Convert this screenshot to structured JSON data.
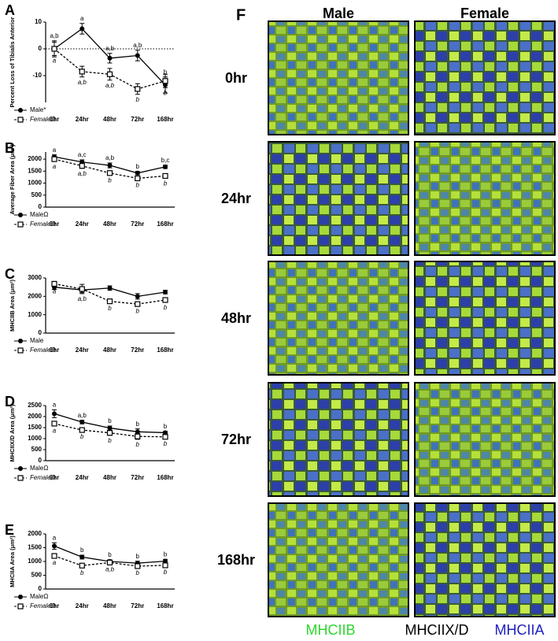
{
  "chart_data": [
    {
      "type": "line",
      "panel": "A",
      "ylabel": "Percent Loss of Tibialis Anterior",
      "categories": [
        "0hr",
        "24hr",
        "48hr",
        "72hr",
        "168hr"
      ],
      "ylim": [
        -20,
        10
      ],
      "yticks": [
        10,
        0,
        -10
      ],
      "zero_line": true,
      "series": [
        {
          "name": "Male*",
          "color": "#000000",
          "style": "solid",
          "marker": "circle",
          "values": [
            0,
            7.5,
            -3.5,
            -2.5,
            -13.5
          ],
          "errors": [
            3,
            2,
            1.8,
            2,
            3
          ],
          "labels": [
            "a,b",
            "a",
            "a,b",
            "a,b",
            "b"
          ]
        },
        {
          "name": "FemaleΩ",
          "color": "#000000",
          "style": "dashed",
          "marker": "square",
          "values": [
            0,
            -8.5,
            -9.5,
            -15,
            -12
          ],
          "errors": [
            2.5,
            2,
            2.2,
            2,
            2.5
          ],
          "labels": [
            "a",
            "a,b",
            "a,b",
            "b",
            "b"
          ]
        }
      ]
    },
    {
      "type": "line",
      "panel": "B",
      "ylabel": "Average Fiber Area (μm²)",
      "categories": [
        "0hr",
        "24hr",
        "48hr",
        "72hr",
        "168hr"
      ],
      "ylim": [
        0,
        2300
      ],
      "yticks": [
        0,
        500,
        1000,
        1500,
        2000
      ],
      "series": [
        {
          "name": "MaleΩ",
          "color": "#000000",
          "style": "solid",
          "marker": "circle",
          "values": [
            2100,
            1880,
            1740,
            1420,
            1680
          ],
          "errors": [
            80,
            90,
            100,
            70,
            70
          ],
          "labels": [
            "a",
            "a,c",
            "a,b",
            "b",
            "b,c"
          ]
        },
        {
          "name": "FemaleΩ",
          "color": "#000000",
          "style": "dashed",
          "marker": "square",
          "values": [
            2000,
            1720,
            1420,
            1200,
            1300
          ],
          "errors": [
            90,
            100,
            80,
            70,
            90
          ],
          "labels": [
            "a",
            "a,b",
            "b",
            "b",
            "b"
          ]
        }
      ]
    },
    {
      "type": "line",
      "panel": "C",
      "ylabel": "MHCIIB Area (μm²)",
      "categories": [
        "0hr",
        "24hr",
        "48hr",
        "72hr",
        "168hr"
      ],
      "ylim": [
        0,
        3000
      ],
      "yticks": [
        0,
        1000,
        2000,
        3000
      ],
      "series": [
        {
          "name": "Male",
          "color": "#000000",
          "style": "solid",
          "marker": "circle",
          "values": [
            2500,
            2350,
            2450,
            2000,
            2230
          ],
          "errors": [
            120,
            150,
            120,
            150,
            100
          ]
        },
        {
          "name": "FemaleΩ",
          "color": "#000000",
          "style": "dashed",
          "marker": "square",
          "values": [
            2680,
            2400,
            1730,
            1580,
            1800
          ],
          "errors": [
            130,
            250,
            100,
            100,
            130
          ],
          "labels": [
            "a",
            "a,b",
            "b",
            "b",
            "b"
          ]
        }
      ]
    },
    {
      "type": "line",
      "panel": "D",
      "ylabel": "MHCIIX/D Area (μm²)",
      "categories": [
        "0hr",
        "24hr",
        "48hr",
        "72hr",
        "168hr"
      ],
      "ylim": [
        0,
        2500
      ],
      "yticks": [
        0,
        500,
        1000,
        1500,
        2000,
        2500
      ],
      "series": [
        {
          "name": "MaleΩ",
          "color": "#000000",
          "style": "solid",
          "marker": "circle",
          "values": [
            2130,
            1750,
            1480,
            1310,
            1270
          ],
          "errors": [
            180,
            80,
            90,
            130,
            60
          ],
          "labels": [
            "a",
            "a,b",
            "b",
            "b",
            "b"
          ]
        },
        {
          "name": "FemaleΩ",
          "color": "#000000",
          "style": "dashed",
          "marker": "square",
          "values": [
            1680,
            1390,
            1260,
            1100,
            1080
          ],
          "errors": [
            80,
            70,
            110,
            130,
            80
          ],
          "labels": [
            "a",
            "b",
            "b",
            "b",
            "b"
          ]
        }
      ]
    },
    {
      "type": "line",
      "panel": "E",
      "ylabel": "MHCIIA Area (μm²)",
      "categories": [
        "0hr",
        "24hr",
        "48hr",
        "72hr",
        "168hr"
      ],
      "ylim": [
        0,
        2000
      ],
      "yticks": [
        0,
        500,
        1000,
        1500,
        2000
      ],
      "series": [
        {
          "name": "MaleΩ",
          "color": "#000000",
          "style": "solid",
          "marker": "circle",
          "values": [
            1560,
            1160,
            1000,
            940,
            1010
          ],
          "errors": [
            120,
            70,
            60,
            70,
            70
          ],
          "labels": [
            "a",
            "b",
            "b",
            "b",
            "b"
          ]
        },
        {
          "name": "FemaleΩ",
          "color": "#000000",
          "style": "dashed",
          "marker": "square",
          "values": [
            1200,
            850,
            960,
            830,
            860
          ],
          "errors": [
            60,
            70,
            50,
            60,
            50
          ],
          "labels": [
            "a",
            "b",
            "a,b",
            "b",
            "b"
          ]
        }
      ]
    }
  ],
  "image_panel": {
    "label": "F",
    "columns": [
      "Male",
      "Female"
    ],
    "rows": [
      "0hr",
      "24hr",
      "48hr",
      "72hr",
      "168hr"
    ],
    "stain_legend": [
      {
        "name": "MHCIIB",
        "color": "#2ed62e"
      },
      {
        "name": "MHCIIX/D",
        "color": "#000000"
      },
      {
        "name": "MHCIIA",
        "color": "#1f1fc0"
      }
    ]
  }
}
